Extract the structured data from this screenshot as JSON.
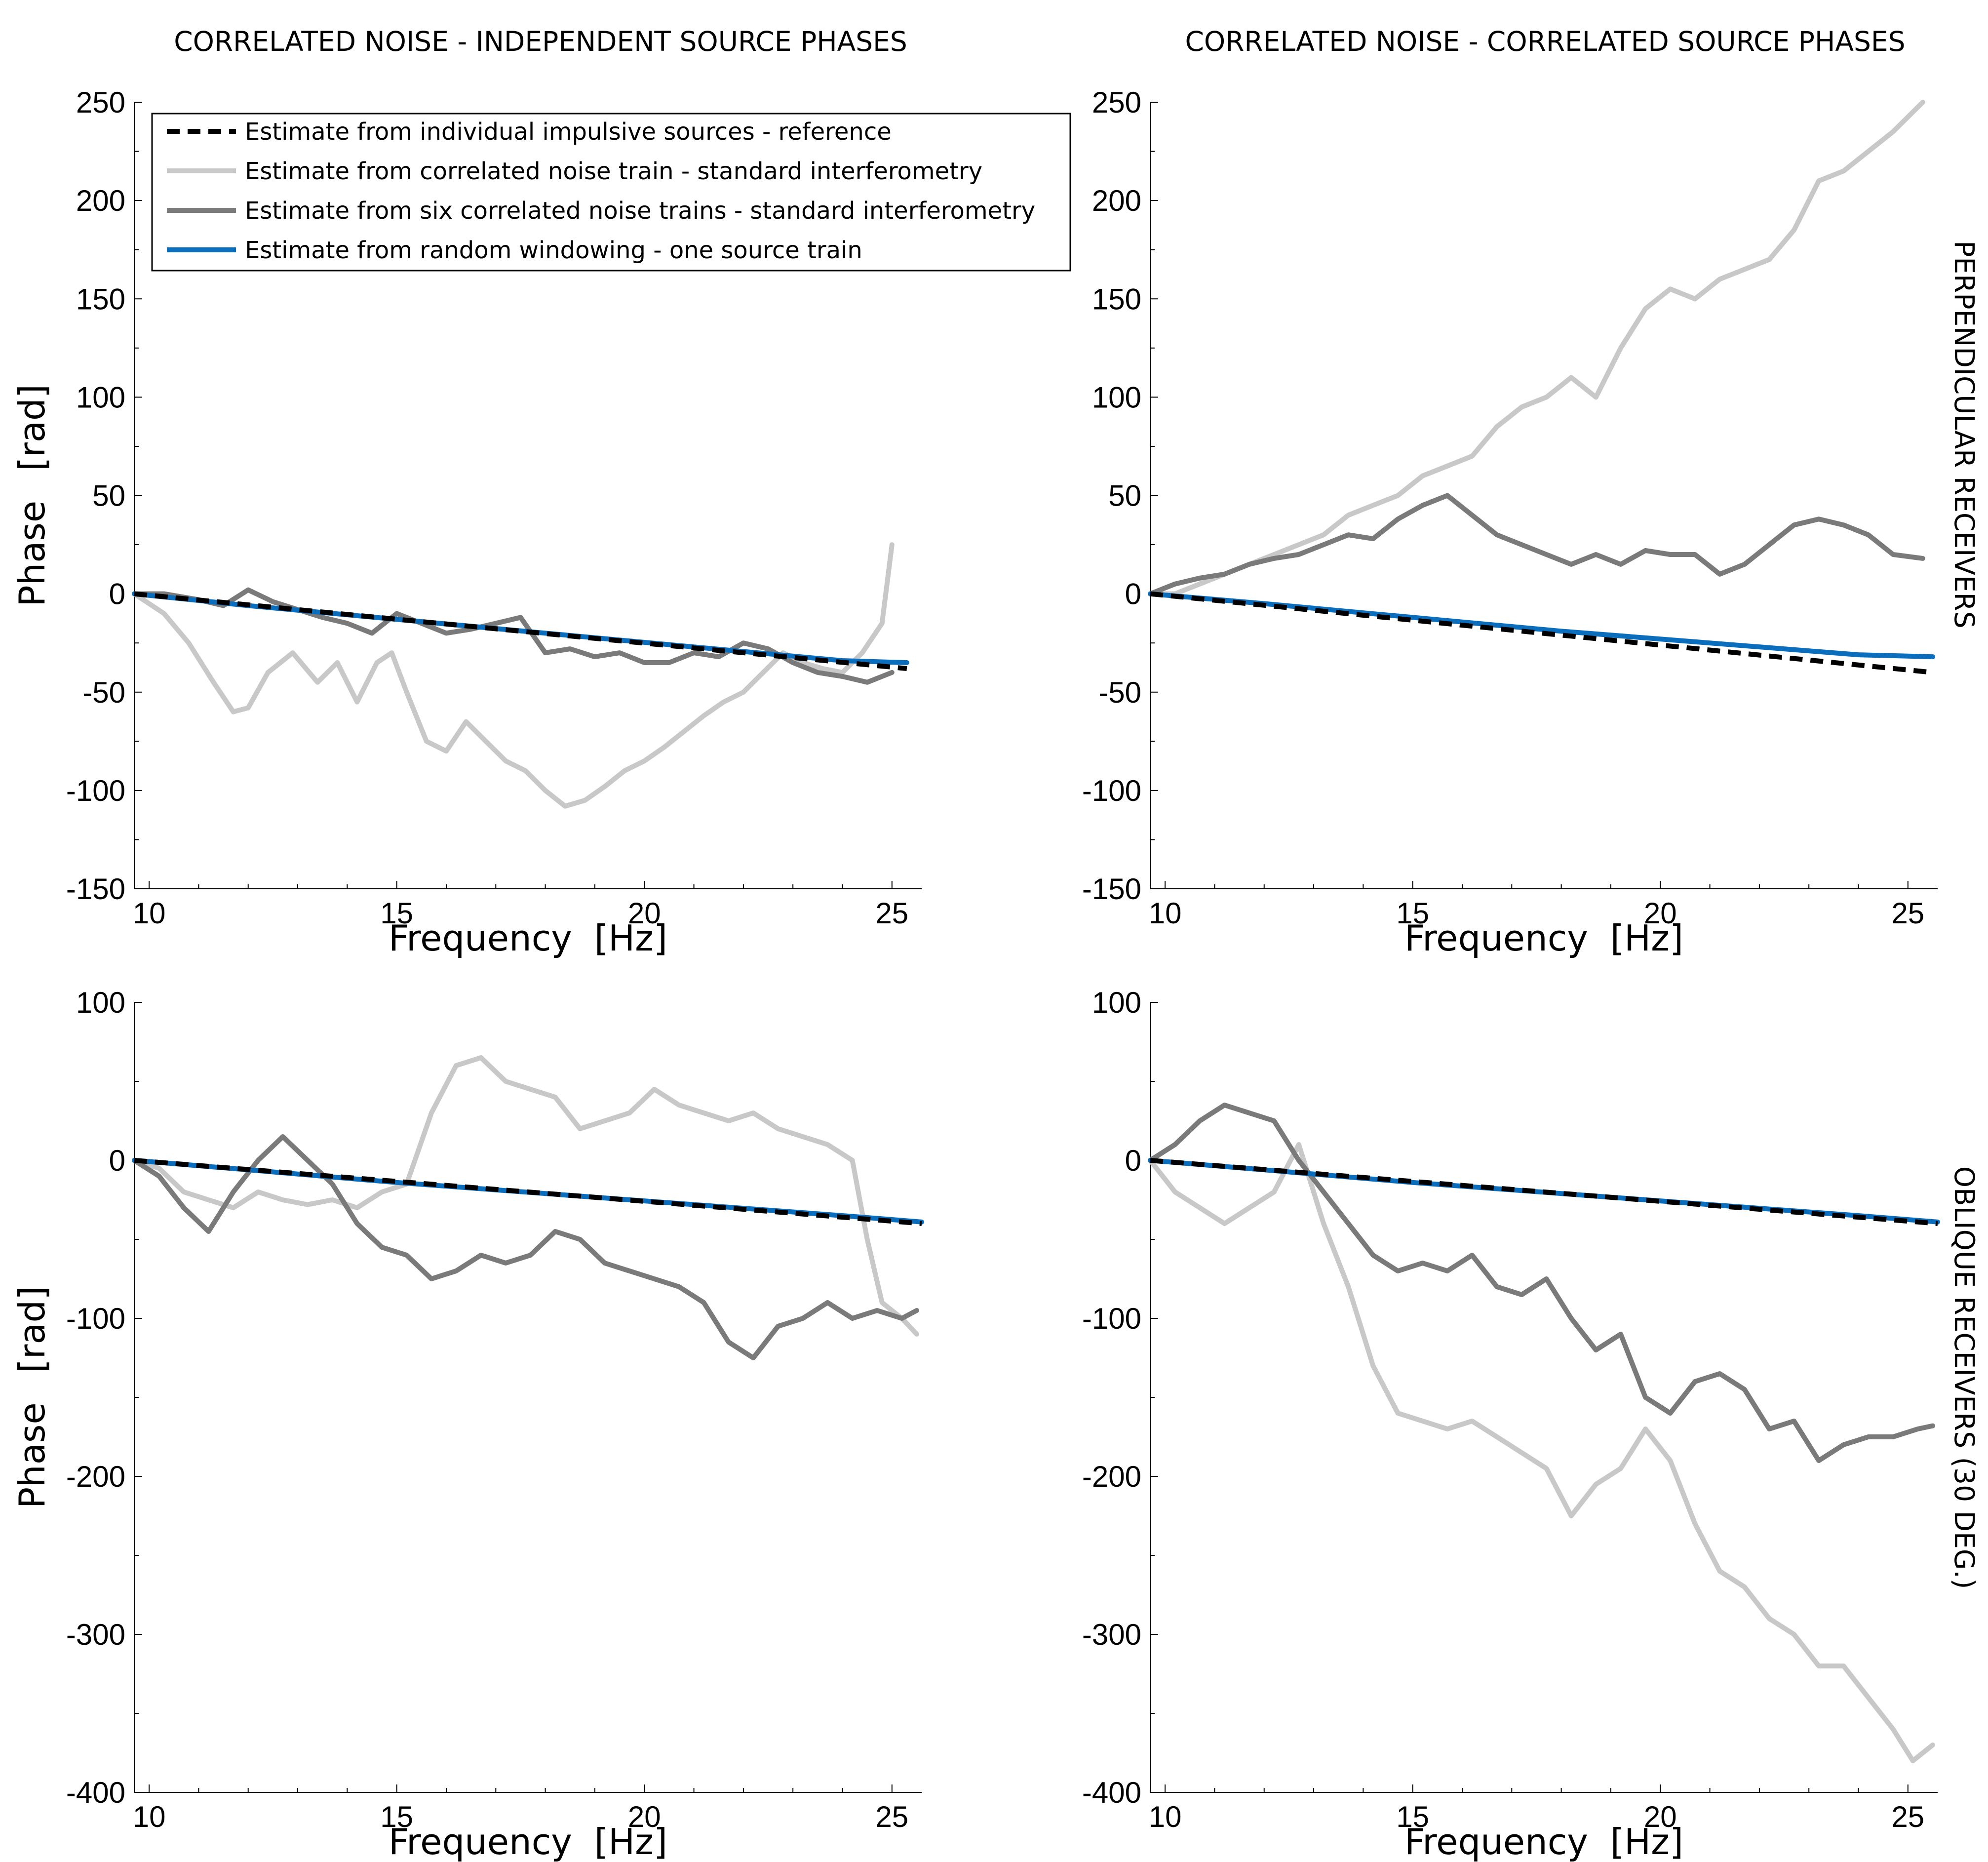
{
  "figure": {
    "col_titles": [
      "CORRELATED NOISE - INDEPENDENT SOURCE PHASES",
      "CORRELATED NOISE - CORRELATED SOURCE PHASES"
    ],
    "row_titles": [
      "PERPENDICULAR RECEIVERS",
      "OBLIQUE RECEIVERS (30 DEG.)"
    ],
    "xlabel_text": "Frequency",
    "xlabel_unit": "[Hz]",
    "ylabel_text": "Phase",
    "ylabel_unit": "[rad]"
  },
  "legend": [
    {
      "label": "Estimate from individual impulsive sources  - reference",
      "color": "#000000",
      "style": "dashed"
    },
    {
      "label": "Estimate from correlated noise train - standard interferometry",
      "color": "#c8c8c8",
      "style": "solid"
    },
    {
      "label": "Estimate from six correlated noise trains  - standard interferometry",
      "color": "#7a7a7a",
      "style": "solid"
    },
    {
      "label": "Estimate from random windowing  - one source train",
      "color": "#0a6ebd",
      "style": "solid"
    }
  ],
  "chart_data": [
    {
      "type": "line",
      "title": "CORRELATED NOISE - INDEPENDENT SOURCE PHASES",
      "row": "PERPENDICULAR RECEIVERS",
      "xlabel": "Frequency [Hz]",
      "ylabel": "Phase [rad]",
      "xlim": [
        9.7,
        25.6
      ],
      "ylim": [
        -150,
        250
      ],
      "xticks": [
        10,
        15,
        20,
        25
      ],
      "yticks": [
        -150,
        -100,
        -50,
        0,
        50,
        100,
        150,
        200,
        250
      ],
      "xtick_labels": [
        "10",
        "15",
        "20",
        "25"
      ],
      "ytick_labels": [
        "-150",
        "-100",
        "-50",
        "0",
        "50",
        "100",
        "150",
        "200",
        "250"
      ],
      "series": [
        {
          "name": "reference",
          "x": [
            9.7,
            25.3
          ],
          "y": [
            0,
            -38
          ]
        },
        {
          "name": "correlated noise train",
          "x": [
            9.7,
            10.3,
            10.8,
            11.3,
            11.7,
            12.0,
            12.4,
            12.9,
            13.4,
            13.8,
            14.2,
            14.6,
            14.9,
            15.2,
            15.6,
            16.0,
            16.4,
            16.8,
            17.2,
            17.6,
            18.0,
            18.4,
            18.8,
            19.2,
            19.6,
            20.0,
            20.4,
            20.8,
            21.2,
            21.6,
            22.0,
            22.4,
            22.8,
            23.2,
            23.6,
            24.0,
            24.4,
            24.8,
            25.0
          ],
          "y": [
            0,
            -10,
            -25,
            -45,
            -60,
            -58,
            -40,
            -30,
            -45,
            -35,
            -55,
            -35,
            -30,
            -50,
            -75,
            -80,
            -65,
            -75,
            -85,
            -90,
            -100,
            -108,
            -105,
            -98,
            -90,
            -85,
            -78,
            -70,
            -62,
            -55,
            -50,
            -40,
            -30,
            -35,
            -38,
            -40,
            -30,
            -15,
            25
          ]
        },
        {
          "name": "six correlated noise trains",
          "x": [
            9.7,
            10.3,
            11.0,
            11.5,
            12.0,
            12.5,
            13.0,
            13.5,
            14.0,
            14.5,
            15.0,
            15.5,
            16.0,
            16.5,
            17.0,
            17.5,
            18.0,
            18.5,
            19.0,
            19.5,
            20.0,
            20.5,
            21.0,
            21.5,
            22.0,
            22.5,
            23.0,
            23.5,
            24.0,
            24.5,
            25.0
          ],
          "y": [
            0,
            0,
            -3,
            -6,
            2,
            -4,
            -8,
            -12,
            -15,
            -20,
            -10,
            -15,
            -20,
            -18,
            -15,
            -12,
            -30,
            -28,
            -32,
            -30,
            -35,
            -35,
            -30,
            -32,
            -25,
            -28,
            -35,
            -40,
            -42,
            -45,
            -40
          ]
        },
        {
          "name": "random windowing",
          "x": [
            9.7,
            12.0,
            15.0,
            18.0,
            21.0,
            24.0,
            25.3
          ],
          "y": [
            0,
            -6,
            -13,
            -20,
            -27,
            -34,
            -35
          ]
        }
      ]
    },
    {
      "type": "line",
      "title": "CORRELATED NOISE - CORRELATED SOURCE PHASES",
      "row": "PERPENDICULAR RECEIVERS",
      "xlabel": "Frequency [Hz]",
      "ylabel": "Phase [rad]",
      "xlim": [
        9.7,
        25.6
      ],
      "ylim": [
        -150,
        250
      ],
      "xticks": [
        10,
        15,
        20,
        25
      ],
      "yticks": [
        -150,
        -100,
        -50,
        0,
        50,
        100,
        150,
        200,
        250
      ],
      "xtick_labels": [
        "10",
        "15",
        "20",
        "25"
      ],
      "ytick_labels": [
        "-150",
        "-100",
        "-50",
        "0",
        "50",
        "100",
        "150",
        "200",
        "250"
      ],
      "series": [
        {
          "name": "reference",
          "x": [
            9.7,
            25.5
          ],
          "y": [
            0,
            -40
          ]
        },
        {
          "name": "correlated noise train",
          "x": [
            9.7,
            10.2,
            10.7,
            11.2,
            11.7,
            12.2,
            12.7,
            13.2,
            13.7,
            14.2,
            14.7,
            15.2,
            15.7,
            16.2,
            16.7,
            17.2,
            17.7,
            18.2,
            18.7,
            19.2,
            19.7,
            20.2,
            20.7,
            21.2,
            21.7,
            22.2,
            22.7,
            23.2,
            23.7,
            24.2,
            24.7,
            25.3
          ],
          "y": [
            0,
            0,
            5,
            10,
            15,
            20,
            25,
            30,
            40,
            45,
            50,
            60,
            65,
            70,
            85,
            95,
            100,
            110,
            100,
            125,
            145,
            155,
            150,
            160,
            165,
            170,
            185,
            210,
            215,
            225,
            235,
            250
          ]
        },
        {
          "name": "six correlated noise trains",
          "x": [
            9.7,
            10.2,
            10.7,
            11.2,
            11.7,
            12.2,
            12.7,
            13.2,
            13.7,
            14.2,
            14.7,
            15.2,
            15.7,
            16.2,
            16.7,
            17.2,
            17.7,
            18.2,
            18.7,
            19.2,
            19.7,
            20.2,
            20.7,
            21.2,
            21.7,
            22.2,
            22.7,
            23.2,
            23.7,
            24.2,
            24.7,
            25.3
          ],
          "y": [
            0,
            5,
            8,
            10,
            15,
            18,
            20,
            25,
            30,
            28,
            38,
            45,
            50,
            40,
            30,
            25,
            20,
            15,
            20,
            15,
            22,
            20,
            20,
            10,
            15,
            25,
            35,
            38,
            35,
            30,
            20,
            18
          ]
        },
        {
          "name": "random windowing",
          "x": [
            9.7,
            12.0,
            15.0,
            18.0,
            21.0,
            24.0,
            25.5
          ],
          "y": [
            0,
            -5,
            -12,
            -19,
            -25,
            -31,
            -32
          ]
        }
      ]
    },
    {
      "type": "line",
      "title": "CORRELATED NOISE - INDEPENDENT SOURCE PHASES",
      "row": "OBLIQUE RECEIVERS (30 DEG.)",
      "xlabel": "Frequency [Hz]",
      "ylabel": "Phase [rad]",
      "xlim": [
        9.7,
        25.6
      ],
      "ylim": [
        -400,
        100
      ],
      "xticks": [
        10,
        15,
        20,
        25
      ],
      "yticks": [
        -400,
        -300,
        -200,
        -100,
        0,
        100
      ],
      "xtick_labels": [
        "10",
        "15",
        "20",
        "25"
      ],
      "ytick_labels": [
        "-400",
        "-300",
        "-200",
        "-100",
        "0",
        "100"
      ],
      "series": [
        {
          "name": "reference",
          "x": [
            9.7,
            25.6
          ],
          "y": [
            0,
            -40
          ]
        },
        {
          "name": "correlated noise train",
          "x": [
            9.7,
            10.2,
            10.7,
            11.2,
            11.7,
            12.2,
            12.7,
            13.2,
            13.7,
            14.2,
            14.7,
            15.2,
            15.7,
            16.2,
            16.7,
            17.2,
            17.7,
            18.2,
            18.7,
            19.2,
            19.7,
            20.2,
            20.7,
            21.2,
            21.7,
            22.2,
            22.7,
            23.2,
            23.7,
            24.2,
            24.5,
            24.8,
            25.2,
            25.5
          ],
          "y": [
            0,
            -5,
            -20,
            -25,
            -30,
            -20,
            -25,
            -28,
            -25,
            -30,
            -20,
            -15,
            30,
            60,
            65,
            50,
            45,
            40,
            20,
            25,
            30,
            45,
            35,
            30,
            25,
            30,
            20,
            15,
            10,
            0,
            -50,
            -90,
            -100,
            -110
          ]
        },
        {
          "name": "six correlated noise trains",
          "x": [
            9.7,
            10.2,
            10.7,
            11.2,
            11.7,
            12.2,
            12.7,
            13.2,
            13.7,
            14.2,
            14.7,
            15.2,
            15.7,
            16.2,
            16.7,
            17.2,
            17.7,
            18.2,
            18.7,
            19.2,
            19.7,
            20.2,
            20.7,
            21.2,
            21.7,
            22.2,
            22.7,
            23.2,
            23.7,
            24.2,
            24.7,
            25.2,
            25.5
          ],
          "y": [
            0,
            -10,
            -30,
            -45,
            -20,
            0,
            15,
            0,
            -15,
            -40,
            -55,
            -60,
            -75,
            -70,
            -60,
            -65,
            -60,
            -45,
            -50,
            -65,
            -70,
            -75,
            -80,
            -90,
            -115,
            -125,
            -105,
            -100,
            -90,
            -100,
            -95,
            -100,
            -95
          ]
        },
        {
          "name": "random windowing",
          "x": [
            9.7,
            12.0,
            15.0,
            18.0,
            21.0,
            24.0,
            25.6
          ],
          "y": [
            0,
            -6,
            -14,
            -21,
            -28,
            -35,
            -39
          ]
        }
      ]
    },
    {
      "type": "line",
      "title": "CORRELATED NOISE - CORRELATED SOURCE PHASES",
      "row": "OBLIQUE RECEIVERS (30 DEG.)",
      "xlabel": "Frequency [Hz]",
      "ylabel": "Phase [rad]",
      "xlim": [
        9.7,
        25.6
      ],
      "ylim": [
        -400,
        100
      ],
      "xticks": [
        10,
        15,
        20,
        25
      ],
      "yticks": [
        -400,
        -300,
        -200,
        -100,
        0,
        100
      ],
      "xtick_labels": [
        "10",
        "15",
        "20",
        "25"
      ],
      "ytick_labels": [
        "-400",
        "-300",
        "-200",
        "-100",
        "0",
        "100"
      ],
      "series": [
        {
          "name": "reference",
          "x": [
            9.7,
            25.6
          ],
          "y": [
            0,
            -40
          ]
        },
        {
          "name": "correlated noise train",
          "x": [
            9.7,
            10.2,
            10.7,
            11.2,
            11.7,
            12.2,
            12.7,
            13.2,
            13.7,
            14.2,
            14.7,
            15.2,
            15.7,
            16.2,
            16.7,
            17.2,
            17.7,
            18.2,
            18.7,
            19.2,
            19.7,
            20.2,
            20.7,
            21.2,
            21.7,
            22.2,
            22.7,
            23.2,
            23.7,
            24.2,
            24.7,
            25.1,
            25.5
          ],
          "y": [
            0,
            -20,
            -30,
            -40,
            -30,
            -20,
            10,
            -40,
            -80,
            -130,
            -160,
            -165,
            -170,
            -165,
            -175,
            -185,
            -195,
            -225,
            -205,
            -195,
            -170,
            -190,
            -230,
            -260,
            -270,
            -290,
            -300,
            -320,
            -320,
            -340,
            -360,
            -380,
            -370
          ]
        },
        {
          "name": "six correlated noise trains",
          "x": [
            9.7,
            10.2,
            10.7,
            11.2,
            11.7,
            12.2,
            12.7,
            13.2,
            13.7,
            14.2,
            14.7,
            15.2,
            15.7,
            16.2,
            16.7,
            17.2,
            17.7,
            18.2,
            18.7,
            19.2,
            19.7,
            20.2,
            20.7,
            21.2,
            21.7,
            22.2,
            22.7,
            23.2,
            23.7,
            24.2,
            24.7,
            25.2,
            25.5
          ],
          "y": [
            0,
            10,
            25,
            35,
            30,
            25,
            0,
            -20,
            -40,
            -60,
            -70,
            -65,
            -70,
            -60,
            -80,
            -85,
            -75,
            -100,
            -120,
            -110,
            -150,
            -160,
            -140,
            -135,
            -145,
            -170,
            -165,
            -190,
            -180,
            -175,
            -175,
            -170,
            -168
          ]
        },
        {
          "name": "random windowing",
          "x": [
            9.7,
            12.0,
            15.0,
            18.0,
            21.0,
            24.0,
            25.6
          ],
          "y": [
            0,
            -6,
            -14,
            -21,
            -28,
            -35,
            -39
          ]
        }
      ]
    }
  ]
}
